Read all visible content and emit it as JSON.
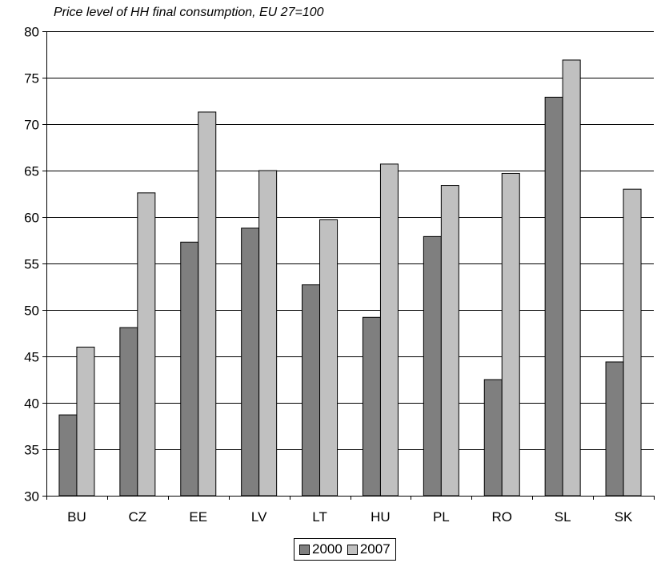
{
  "chart_data": {
    "type": "bar",
    "title": "Price level of HH final consumption, EU 27=100",
    "categories": [
      "BU",
      "CZ",
      "EE",
      "LV",
      "LT",
      "HU",
      "PL",
      "RO",
      "SL",
      "SK"
    ],
    "series": [
      {
        "name": "2000",
        "color": "#7f7f7f",
        "values": [
          38.7,
          48.1,
          57.3,
          58.8,
          52.7,
          49.2,
          57.9,
          42.5,
          72.9,
          44.4
        ]
      },
      {
        "name": "2007",
        "color": "#c0c0c0",
        "values": [
          46.0,
          62.6,
          71.3,
          65.0,
          59.7,
          65.7,
          63.4,
          64.7,
          76.9,
          63.0
        ]
      }
    ],
    "ylim": [
      30,
      80
    ],
    "yticks": [
      30,
      35,
      40,
      45,
      50,
      55,
      60,
      65,
      70,
      75,
      80
    ],
    "grid": true,
    "legend_position": "bottom-center"
  }
}
